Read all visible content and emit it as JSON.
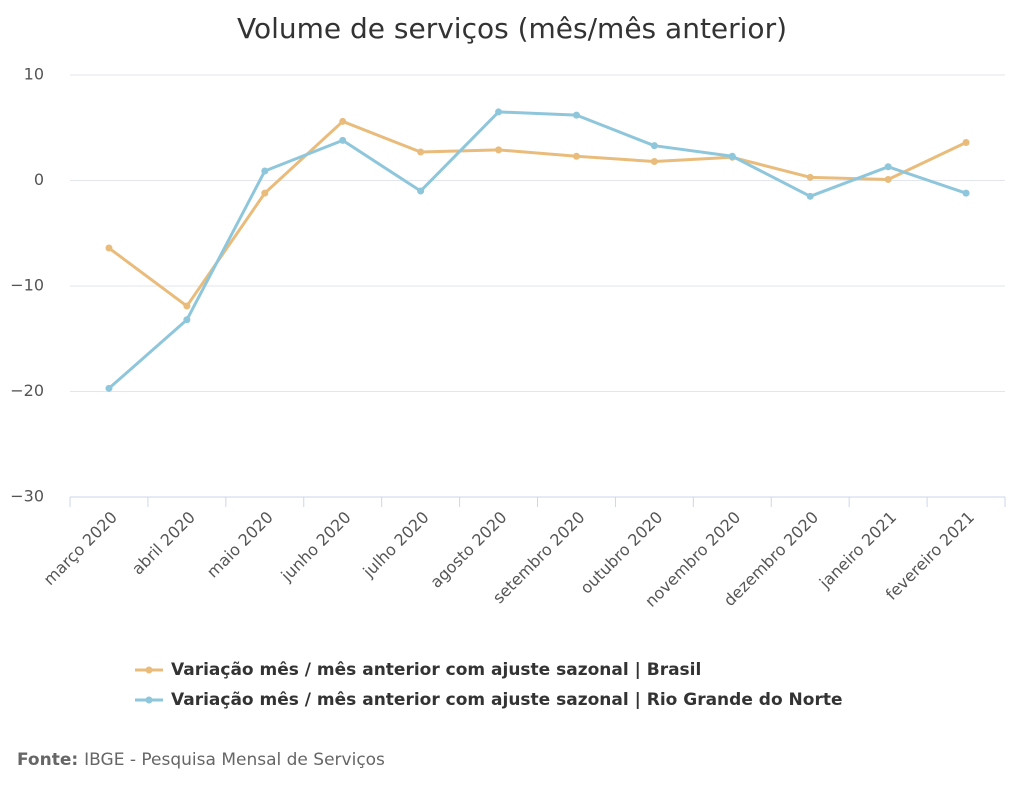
{
  "chart_data": {
    "type": "line",
    "title": "Volume de serviços (mês/mês anterior)",
    "categories": [
      "março 2020",
      "abril 2020",
      "maio 2020",
      "junho 2020",
      "julho 2020",
      "agosto 2020",
      "setembro 2020",
      "outubro 2020",
      "novembro 2020",
      "dezembro 2020",
      "janeiro 2021",
      "fevereiro 2021"
    ],
    "series": [
      {
        "name": "Variação mês / mês anterior com ajuste sazonal | Brasil",
        "color": "#e9bc7c",
        "values": [
          -6.4,
          -11.9,
          -1.2,
          5.6,
          2.7,
          2.9,
          2.3,
          1.8,
          2.2,
          0.3,
          0.1,
          3.6
        ]
      },
      {
        "name": "Variação mês / mês anterior com ajuste sazonal | Rio Grande do Norte",
        "color": "#8ec6db",
        "values": [
          -19.7,
          -13.2,
          0.9,
          3.8,
          -1.0,
          6.5,
          6.2,
          3.3,
          2.3,
          -1.5,
          1.3,
          -1.2
        ]
      }
    ],
    "ylim": [
      -30,
      10
    ],
    "yticks": [
      {
        "value": -30,
        "label": "−30"
      },
      {
        "value": -20,
        "label": "−20"
      },
      {
        "value": -10,
        "label": "−10"
      },
      0,
      10
    ],
    "grid": true,
    "legend": "bottom",
    "source": {
      "label": "Fonte:",
      "text": "IBGE - Pesquisa Mensal de Serviços"
    }
  }
}
